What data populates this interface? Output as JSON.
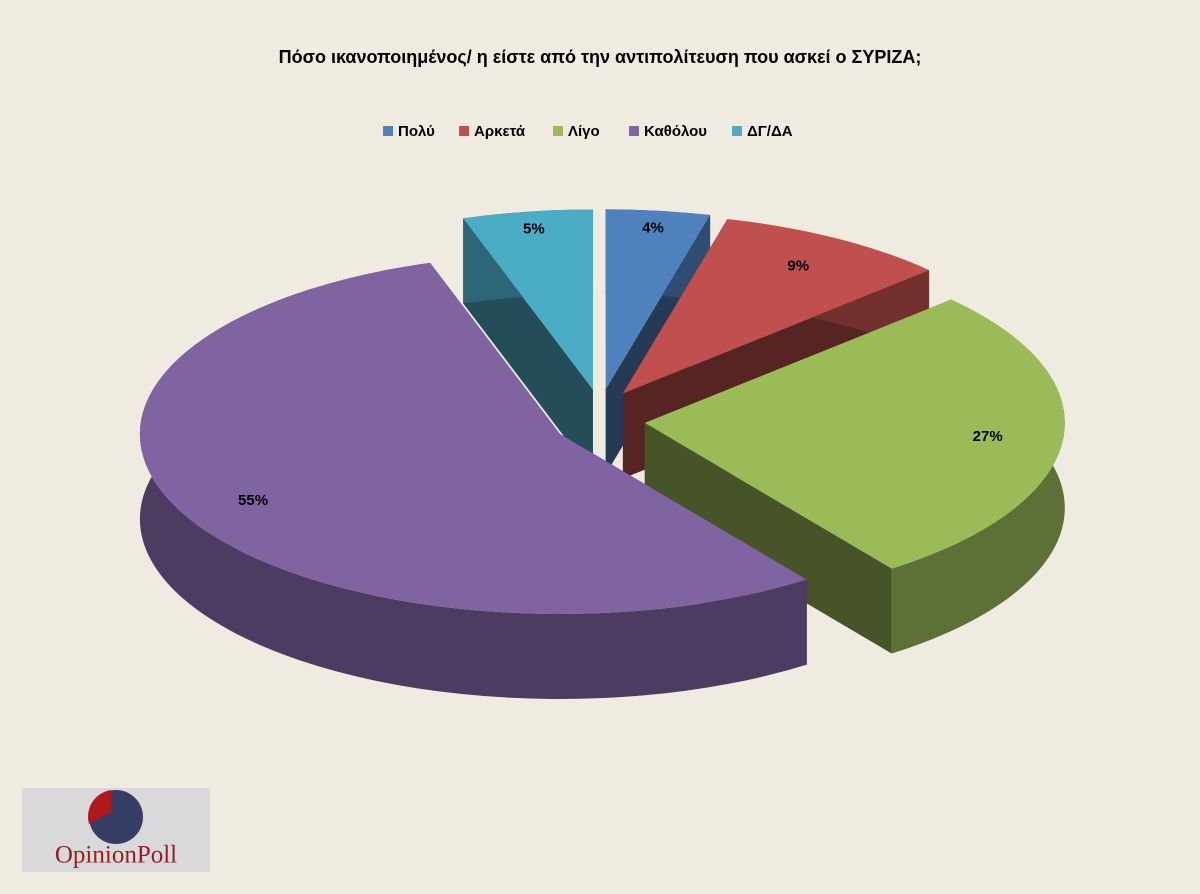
{
  "chart_data": {
    "type": "pie3d",
    "title": "Πόσο ικανοποιημένος/ η είστε από την αντιπολίτευση που ασκεί ο ΣΥΡΙΖΑ;",
    "categories": [
      "Πολύ",
      "Αρκετά",
      "Λίγο",
      "Καθόλου",
      "ΔΓ/ΔΑ"
    ],
    "values": [
      4,
      9,
      27,
      55,
      5
    ],
    "value_labels": [
      "4%",
      "9%",
      "27%",
      "55%",
      "5%"
    ],
    "colors": [
      "#4f81bd",
      "#c0504d",
      "#9bbb59",
      "#8064a2",
      "#4bacc6"
    ],
    "legend": "top"
  },
  "logo": {
    "text": "OpinionPoll"
  }
}
